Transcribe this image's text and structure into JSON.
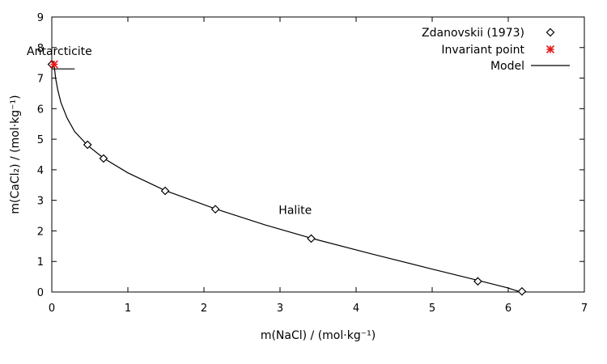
{
  "chart_data": {
    "type": "scatter",
    "xlabel": "m(NaCl) / (mol·kg⁻¹)",
    "ylabel": "m(CaCl₂) / (mol·kg⁻¹)",
    "xlim": [
      0,
      7
    ],
    "ylim": [
      0,
      9
    ],
    "xticks": [
      "0",
      "1",
      "2",
      "3",
      "4",
      "5",
      "6",
      "7"
    ],
    "yticks": [
      "0",
      "1",
      "2",
      "3",
      "4",
      "5",
      "6",
      "7",
      "8",
      "9"
    ],
    "grid": false,
    "legend_position": "top-right",
    "series": [
      {
        "name": "Zdanovskii (1973)",
        "kind": "scatter",
        "marker": "diamond",
        "color": "#000000",
        "points": [
          {
            "x": 0.0,
            "y": 7.45
          },
          {
            "x": 0.47,
            "y": 4.82
          },
          {
            "x": 0.68,
            "y": 4.37
          },
          {
            "x": 1.49,
            "y": 3.31
          },
          {
            "x": 2.15,
            "y": 2.71
          },
          {
            "x": 3.41,
            "y": 1.75
          },
          {
            "x": 5.6,
            "y": 0.35
          },
          {
            "x": 6.18,
            "y": 0.02
          }
        ]
      },
      {
        "name": "Invariant point",
        "kind": "scatter",
        "marker": "asterisk",
        "color": "#e41a1c",
        "points": [
          {
            "x": 0.03,
            "y": 7.45
          }
        ]
      },
      {
        "name": "Model",
        "kind": "line",
        "color": "#000000",
        "points": [
          {
            "x": 0.03,
            "y": 7.45
          },
          {
            "x": 0.05,
            "y": 7.0
          },
          {
            "x": 0.08,
            "y": 6.6
          },
          {
            "x": 0.12,
            "y": 6.2
          },
          {
            "x": 0.2,
            "y": 5.7
          },
          {
            "x": 0.3,
            "y": 5.25
          },
          {
            "x": 0.47,
            "y": 4.8
          },
          {
            "x": 0.68,
            "y": 4.38
          },
          {
            "x": 1.0,
            "y": 3.9
          },
          {
            "x": 1.49,
            "y": 3.32
          },
          {
            "x": 2.15,
            "y": 2.72
          },
          {
            "x": 2.8,
            "y": 2.2
          },
          {
            "x": 3.41,
            "y": 1.76
          },
          {
            "x": 4.2,
            "y": 1.25
          },
          {
            "x": 5.0,
            "y": 0.75
          },
          {
            "x": 5.6,
            "y": 0.38
          },
          {
            "x": 6.0,
            "y": 0.13
          },
          {
            "x": 6.16,
            "y": 0.0
          }
        ]
      },
      {
        "name": "",
        "kind": "line",
        "color": "#000000",
        "points": [
          {
            "x": 0.0,
            "y": 7.3
          },
          {
            "x": 0.3,
            "y": 7.3
          }
        ]
      }
    ],
    "annotations": [
      {
        "text": "Antarcticite",
        "x": 0.1,
        "y": 7.75
      },
      {
        "text": "Halite",
        "x": 3.2,
        "y": 2.55
      }
    ]
  }
}
